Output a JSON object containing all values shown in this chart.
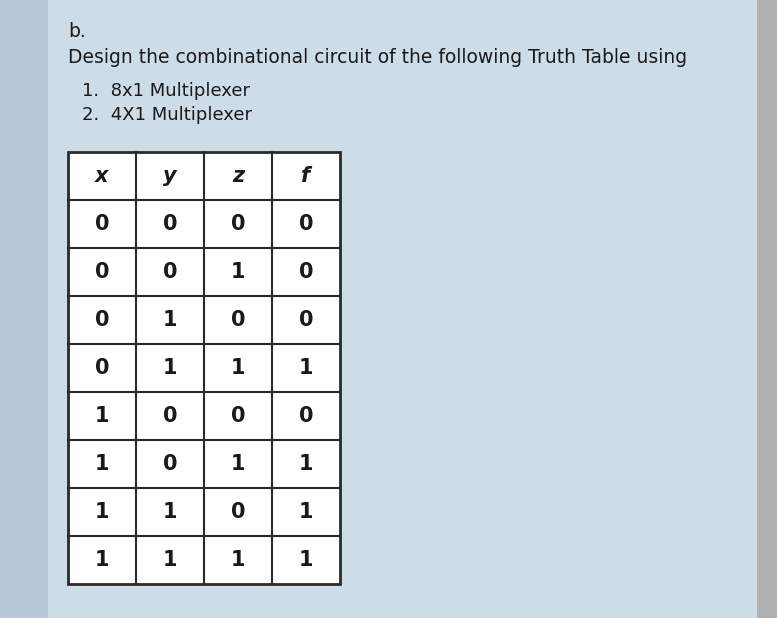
{
  "background_color": "#ccdde8",
  "title_b": "b.",
  "title_main": "Design the combinational circuit of the following Truth Table using",
  "bullet1": "1.  8x1 Multiplexer",
  "bullet2": "2.  4X1 Multiplexer",
  "table_headers": [
    "x",
    "y",
    "z",
    "f"
  ],
  "table_data": [
    [
      0,
      0,
      0,
      0
    ],
    [
      0,
      0,
      1,
      0
    ],
    [
      0,
      1,
      0,
      0
    ],
    [
      0,
      1,
      1,
      1
    ],
    [
      1,
      0,
      0,
      0
    ],
    [
      1,
      0,
      1,
      1
    ],
    [
      1,
      1,
      0,
      1
    ],
    [
      1,
      1,
      1,
      1
    ]
  ],
  "table_bg": "#ffffff",
  "table_border_color": "#2a2a2a",
  "header_font_size": 15,
  "cell_font_size": 15,
  "text_color": "#1a1a1a",
  "title_font_size": 13.5,
  "label_font_size": 13,
  "right_bar_color": "#999999"
}
